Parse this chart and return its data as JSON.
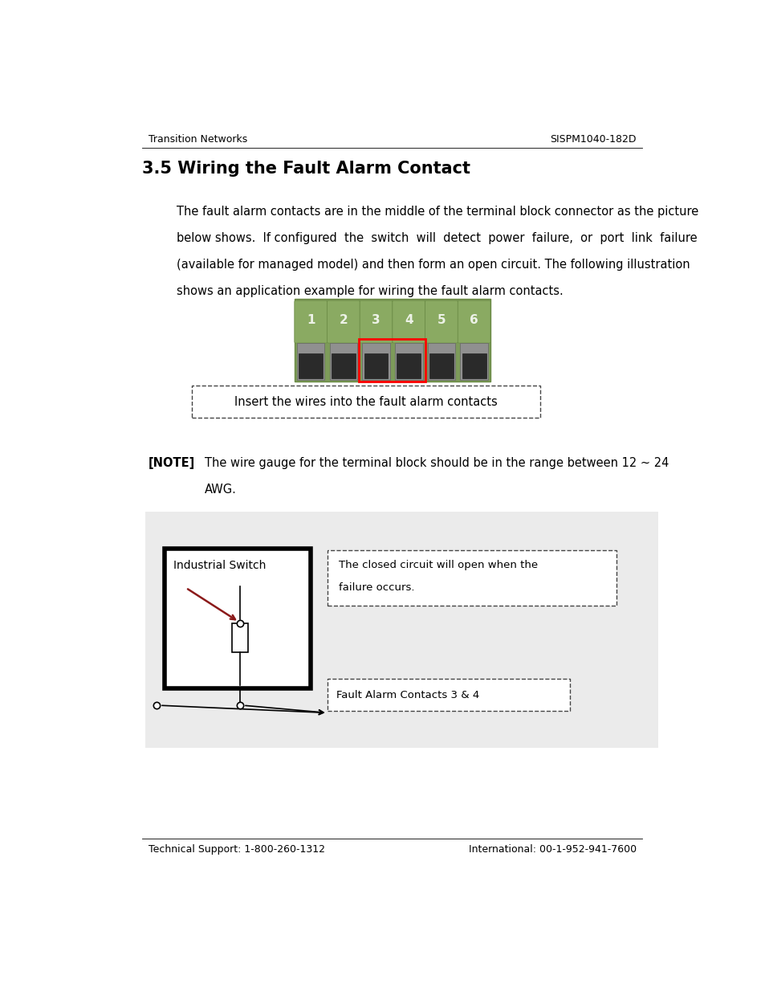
{
  "page_width": 9.54,
  "page_height": 12.35,
  "bg_color": "#ffffff",
  "header_left": "Transition Networks",
  "header_right": "SISPM1040-182D",
  "header_fontsize": 9,
  "title": "3.5 Wiring the Fault Alarm Contact",
  "title_fontsize": 15,
  "body_text_line1": "The fault alarm contacts are in the middle of the terminal block connector as the picture",
  "body_text_line2": "below shows.  If configured  the  switch  will  detect  power  failure,  or  port  link  failure",
  "body_text_line3": "(available for managed model) and then form an open circuit. The following illustration",
  "body_text_line4": "shows an application example for wiring the fault alarm contacts.",
  "body_fontsize": 10.5,
  "note_label": "[NOTE]",
  "note_text_line1": "The wire gauge for the terminal block should be in the range between 12 ~ 24",
  "note_text_line2": "AWG.",
  "note_fontsize": 10.5,
  "callout_insert": "Insert the wires into the fault alarm contacts",
  "callout_fontsize": 10.5,
  "callout2_line1": "The closed circuit will open when the",
  "callout2_line2": "failure occurs.",
  "callout3": "Fault Alarm Contacts 3 & 4",
  "footer_left": "Technical Support: 1-800-260-1312",
  "footer_right": "International: 00-1-952-941-7600",
  "footer_fontsize": 9,
  "green_color": "#8aaa62",
  "green_dark": "#6a8a45",
  "green_bg": "#7d9b5a"
}
